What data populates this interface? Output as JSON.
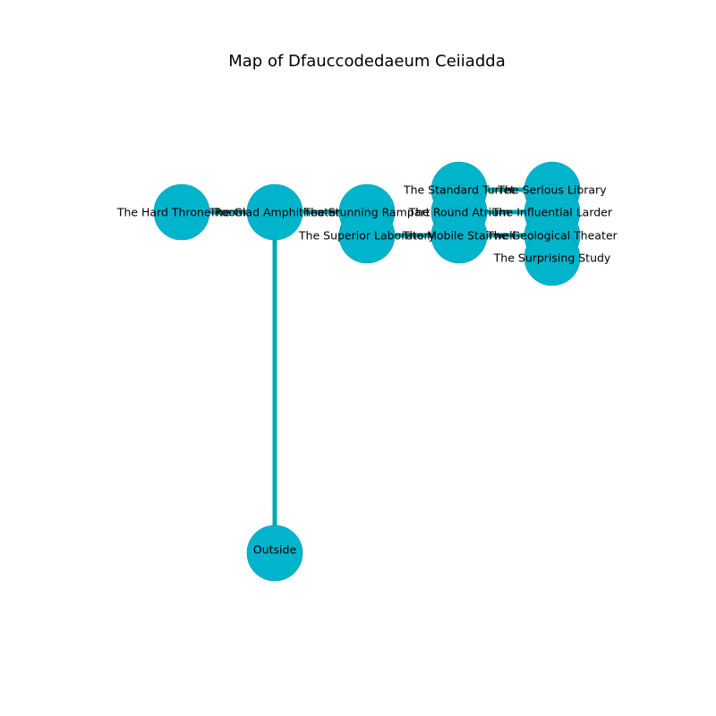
{
  "title": "Map of Dfauccodedaeum Ceiiadda",
  "colors": {
    "node_fill": "#00b4cc",
    "node_stroke": "#0096aa",
    "edge": "#00a8b0",
    "text": "#000000",
    "background": "#ffffff"
  },
  "rooms": [
    {
      "id": "hard-throne-room",
      "label": "The Hard Throne Room"
    },
    {
      "id": "glad-amphitheater",
      "label": "The Glad Amphitheater"
    },
    {
      "id": "outside",
      "label": "Outside"
    },
    {
      "id": "stunning-rampart",
      "label": "The Stunning Rampart"
    },
    {
      "id": "superior-laboratory",
      "label": "The Superior Laboratory"
    },
    {
      "id": "standard-turret",
      "label": "The Standard Turret"
    },
    {
      "id": "round-atrium",
      "label": "The Round Atrium"
    },
    {
      "id": "mobile-stairwell",
      "label": "The Mobile Stairwell"
    },
    {
      "id": "serious-library",
      "label": "The Serious Library"
    },
    {
      "id": "influential-larder",
      "label": "The Influential Larder"
    },
    {
      "id": "geological-theater",
      "label": "The Geological Theater"
    },
    {
      "id": "surprising-study",
      "label": "The Surprising Study"
    }
  ],
  "connections": [
    [
      "hard-throne-room",
      "glad-amphitheater"
    ],
    [
      "glad-amphitheater",
      "outside"
    ],
    [
      "glad-amphitheater",
      "stunning-rampart"
    ],
    [
      "stunning-rampart",
      "superior-laboratory"
    ],
    [
      "superior-laboratory",
      "mobile-stairwell"
    ],
    [
      "standard-turret",
      "serious-library"
    ],
    [
      "round-atrium",
      "influential-larder"
    ],
    [
      "mobile-stairwell",
      "geological-theater"
    ],
    [
      "round-atrium",
      "mobile-stairwell"
    ],
    [
      "influential-larder",
      "surprising-study"
    ]
  ]
}
